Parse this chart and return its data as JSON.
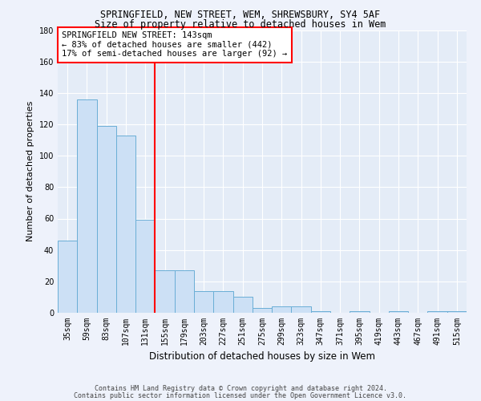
{
  "title1": "SPRINGFIELD, NEW STREET, WEM, SHREWSBURY, SY4 5AF",
  "title2": "Size of property relative to detached houses in Wem",
  "xlabel": "Distribution of detached houses by size in Wem",
  "ylabel": "Number of detached properties",
  "categories": [
    "35sqm",
    "59sqm",
    "83sqm",
    "107sqm",
    "131sqm",
    "155sqm",
    "179sqm",
    "203sqm",
    "227sqm",
    "251sqm",
    "275sqm",
    "299sqm",
    "323sqm",
    "347sqm",
    "371sqm",
    "395sqm",
    "419sqm",
    "443sqm",
    "467sqm",
    "491sqm",
    "515sqm"
  ],
  "values": [
    46,
    136,
    119,
    113,
    59,
    27,
    27,
    14,
    14,
    10,
    3,
    4,
    4,
    1,
    0,
    1,
    0,
    1,
    0,
    1,
    1
  ],
  "bar_color": "#cce0f5",
  "bar_edge_color": "#6aaed6",
  "vline_x": 4.5,
  "vline_color": "red",
  "annotation_line1": "SPRINGFIELD NEW STREET: 143sqm",
  "annotation_line2": "← 83% of detached houses are smaller (442)",
  "annotation_line3": "17% of semi-detached houses are larger (92) →",
  "annotation_box_color": "white",
  "annotation_box_edge": "red",
  "ylim": [
    0,
    180
  ],
  "yticks": [
    0,
    20,
    40,
    60,
    80,
    100,
    120,
    140,
    160,
    180
  ],
  "footnote1": "Contains HM Land Registry data © Crown copyright and database right 2024.",
  "footnote2": "Contains public sector information licensed under the Open Government Licence v3.0.",
  "background_color": "#eef2fb",
  "plot_bg_color": "#e4ecf7",
  "title_fontsize": 8.5,
  "ylabel_fontsize": 8,
  "xlabel_fontsize": 8.5,
  "tick_fontsize": 7,
  "annotation_fontsize": 7.5,
  "footnote_fontsize": 6
}
